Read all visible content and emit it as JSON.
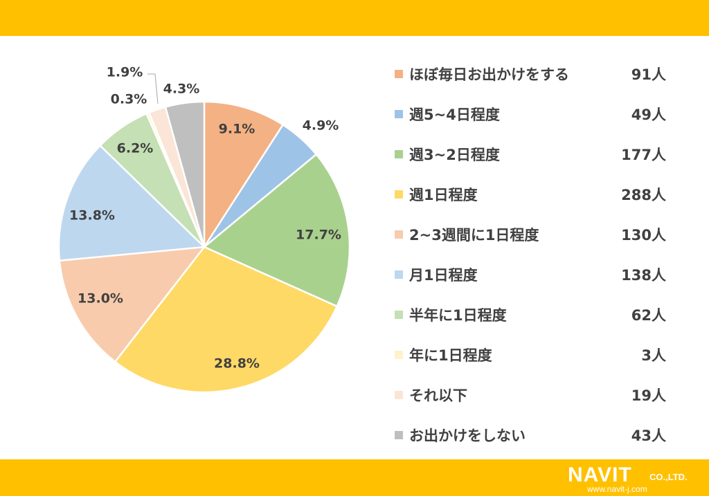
{
  "chart_data": {
    "type": "pie",
    "title": "",
    "slices": [
      {
        "label": "ほぼ毎日お出かけをする",
        "percent": 9.1,
        "percent_label": "9.1%",
        "count": "91人",
        "color": "#F4B183"
      },
      {
        "label": "週5~4日程度",
        "percent": 4.9,
        "percent_label": "4.9%",
        "count": "49人",
        "color": "#9DC3E6"
      },
      {
        "label": "週3~2日程度",
        "percent": 17.7,
        "percent_label": "17.7%",
        "count": "177人",
        "color": "#A9D18E"
      },
      {
        "label": "週1日程度",
        "percent": 28.8,
        "percent_label": "28.8%",
        "count": "288人",
        "color": "#FFD966"
      },
      {
        "label": "2~3週間に1日程度",
        "percent": 13.0,
        "percent_label": "13.0%",
        "count": "130人",
        "color": "#F8CBAD"
      },
      {
        "label": "月1日程度",
        "percent": 13.8,
        "percent_label": "13.8%",
        "count": "138人",
        "color": "#BDD7EE"
      },
      {
        "label": "半年に1日程度",
        "percent": 6.2,
        "percent_label": "6.2%",
        "count": "62人",
        "color": "#C5E0B4"
      },
      {
        "label": "年に1日程度",
        "percent": 0.3,
        "percent_label": "0.3%",
        "count": "3人",
        "color": "#FFF2CC"
      },
      {
        "label": "それ以下",
        "percent": 1.9,
        "percent_label": "1.9%",
        "count": "19人",
        "color": "#FBE5D6"
      },
      {
        "label": "お出かけをしない",
        "percent": 4.3,
        "percent_label": "4.3%",
        "count": "43人",
        "color": "#BFBFBF"
      }
    ],
    "legend_position": "right"
  },
  "logo": {
    "name": "NAVIT",
    "suffix": "CO.,LTD.",
    "url": "www.navit-j.com"
  },
  "colors": {
    "band": "#FFC000",
    "label_text": "#404040"
  }
}
